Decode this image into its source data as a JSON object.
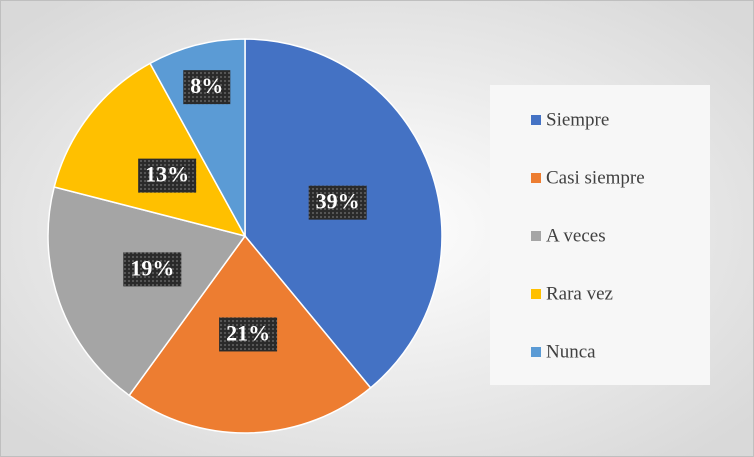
{
  "chart_data": {
    "type": "pie",
    "categories": [
      "Siempre",
      "Casi siempre",
      "A veces",
      "Rara vez",
      "Nunca"
    ],
    "values": [
      39,
      21,
      19,
      13,
      8
    ],
    "value_labels": [
      "39%",
      "21%",
      "19%",
      "13%",
      "8%"
    ],
    "colors": [
      "#4472c4",
      "#ed7d31",
      "#a5a5a5",
      "#ffc000",
      "#5b9bd5"
    ],
    "legend": "right"
  }
}
